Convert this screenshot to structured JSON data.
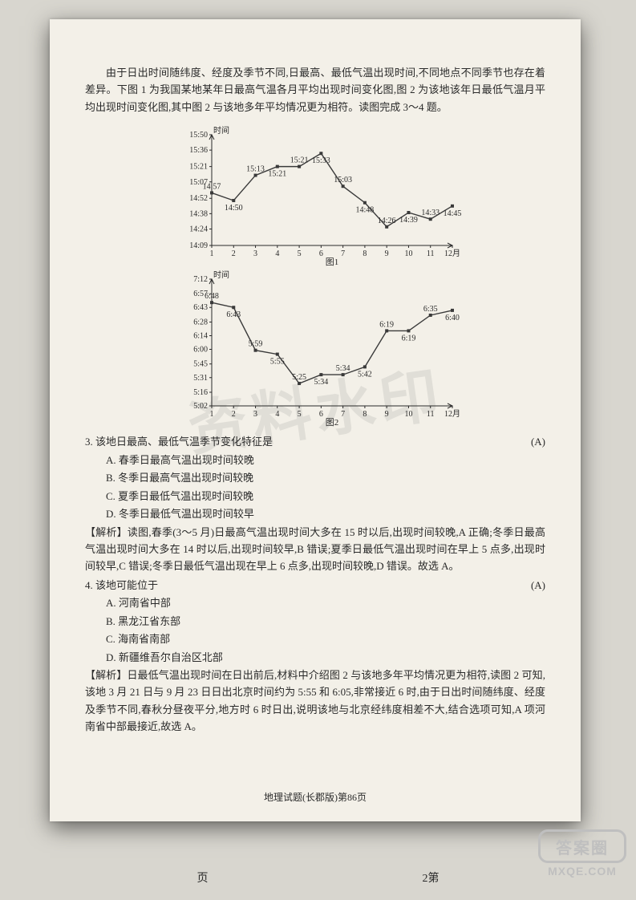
{
  "page": {
    "background_color": "#d8d6cf",
    "sheet_color": "#f3f0e8",
    "text_color": "#2a2a2a",
    "footer": "地理试题(长郡版)第86页",
    "outer_page_label_left": "页",
    "outer_page_label_right": "2第",
    "watermark_text": "资料水印",
    "logo_text": "答案圈",
    "logo_site": "MXQE.COM"
  },
  "intro": "由于日出时间随纬度、经度及季节不同,日最高、最低气温出现时间,不同地点不同季节也存在着差异。下图 1 为我国某地某年日最高气温各月平均出现时间变化图,图 2 为该地该年日最低气温月平均出现时间变化图,其中图 2 与该地多年平均情况更为相符。读图完成 3～4 题。",
  "chart1": {
    "type": "line",
    "title": "图1",
    "y_label": "时间",
    "months": [
      1,
      2,
      3,
      4,
      5,
      6,
      7,
      8,
      9,
      10,
      11,
      12
    ],
    "x_suffix": "月",
    "times": [
      "14:57",
      "14:50",
      "15:13",
      "15:21",
      "15:21",
      "15:33",
      "15:03",
      "14:48",
      "14:26",
      "14:39",
      "14:33",
      "14:45"
    ],
    "minutes": [
      897,
      890,
      913,
      921,
      921,
      933,
      903,
      888,
      866,
      879,
      873,
      885
    ],
    "y_ticks_label": [
      "14:09",
      "14:24",
      "14:38",
      "14:52",
      "15:07",
      "15:21",
      "15:36",
      "15:50"
    ],
    "y_ticks_min": [
      849,
      864,
      878,
      892,
      907,
      921,
      936,
      950
    ],
    "ylim": [
      849,
      950
    ],
    "line_color": "#3a3a3a",
    "marker": "square",
    "marker_size": 4,
    "marker_fill": "#3a3a3a",
    "background": "#f3f0e8",
    "axis_color": "#2a2a2a",
    "font_size": 10
  },
  "chart2": {
    "type": "line",
    "title": "图2",
    "y_label": "时间",
    "months": [
      1,
      2,
      3,
      4,
      5,
      6,
      7,
      8,
      9,
      10,
      11,
      12
    ],
    "x_suffix": "月",
    "times": [
      "6:48",
      "6:43",
      "5:59",
      "5:55",
      "5:25",
      "5:34",
      "5:34",
      "5:42",
      "6:19",
      "6:19",
      "6:35",
      "6:40"
    ],
    "minutes": [
      408,
      403,
      359,
      355,
      325,
      334,
      334,
      342,
      379,
      379,
      395,
      400
    ],
    "y_ticks_label": [
      "5:02",
      "5:16",
      "5:31",
      "5:45",
      "6:00",
      "6:14",
      "6:28",
      "6:43",
      "6:57",
      "7:12"
    ],
    "y_ticks_min": [
      302,
      316,
      331,
      345,
      360,
      374,
      388,
      403,
      417,
      432
    ],
    "ylim": [
      302,
      432
    ],
    "line_color": "#3a3a3a",
    "marker": "square",
    "marker_size": 4,
    "marker_fill": "#3a3a3a",
    "background": "#f3f0e8",
    "axis_color": "#2a2a2a",
    "font_size": 10
  },
  "q3": {
    "stem": "3. 该地日最高、最低气温季节变化特征是",
    "answer": "(A)",
    "options": {
      "A": "A. 春季日最高气温出现时间较晚",
      "B": "B. 冬季日最高气温出现时间较晚",
      "C": "C. 夏季日最低气温出现时间较晚",
      "D": "D. 冬季日最低气温出现时间较早"
    },
    "analysis": "【解析】读图,春季(3～5 月)日最高气温出现时间大多在 15 时以后,出现时间较晚,A 正确;冬季日最高气温出现时间大多在 14 时以后,出现时间较早,B 错误;夏季日最低气温出现时间在早上 5 点多,出现时间较早,C 错误;冬季日最低气温出现在早上 6 点多,出现时间较晚,D 错误。故选 A。"
  },
  "q4": {
    "stem": "4. 该地可能位于",
    "answer": "(A)",
    "options": {
      "A": "A. 河南省中部",
      "B": "B. 黑龙江省东部",
      "C": "C. 海南省南部",
      "D": "D. 新疆维吾尔自治区北部"
    },
    "analysis": "【解析】日最低气温出现时间在日出前后,材料中介绍图 2 与该地多年平均情况更为相符,读图 2 可知,该地 3 月 21 日与 9 月 23 日日出北京时间约为 5:55 和 6:05,非常接近 6 时,由于日出时间随纬度、经度及季节不同,春秋分昼夜平分,地方时 6 时日出,说明该地与北京经纬度相差不大,结合选项可知,A 项河南省中部最接近,故选 A。"
  }
}
